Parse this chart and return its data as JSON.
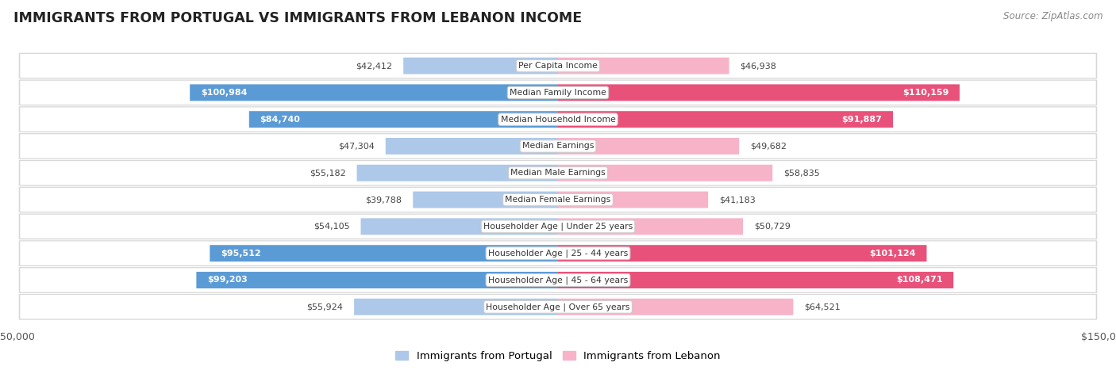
{
  "title": "IMMIGRANTS FROM PORTUGAL VS IMMIGRANTS FROM LEBANON INCOME",
  "source": "Source: ZipAtlas.com",
  "categories": [
    "Per Capita Income",
    "Median Family Income",
    "Median Household Income",
    "Median Earnings",
    "Median Male Earnings",
    "Median Female Earnings",
    "Householder Age | Under 25 years",
    "Householder Age | 25 - 44 years",
    "Householder Age | 45 - 64 years",
    "Householder Age | Over 65 years"
  ],
  "portugal_values": [
    42412,
    100984,
    84740,
    47304,
    55182,
    39788,
    54105,
    95512,
    99203,
    55924
  ],
  "lebanon_values": [
    46938,
    110159,
    91887,
    49682,
    58835,
    41183,
    50729,
    101124,
    108471,
    64521
  ],
  "portugal_labels": [
    "$42,412",
    "$100,984",
    "$84,740",
    "$47,304",
    "$55,182",
    "$39,788",
    "$54,105",
    "$95,512",
    "$99,203",
    "$55,924"
  ],
  "lebanon_labels": [
    "$46,938",
    "$110,159",
    "$91,887",
    "$49,682",
    "$58,835",
    "$41,183",
    "$50,729",
    "$101,124",
    "$108,471",
    "$64,521"
  ],
  "portugal_color_light": "#adc8e8",
  "portugal_color_dark": "#5b9bd5",
  "lebanon_color_light": "#f7b3c8",
  "lebanon_color_dark": "#e8517a",
  "dark_threshold": 80000,
  "max_value": 150000,
  "portugal_legend": "Immigrants from Portugal",
  "lebanon_legend": "Immigrants from Lebanon",
  "label_inside_threshold": 75000
}
